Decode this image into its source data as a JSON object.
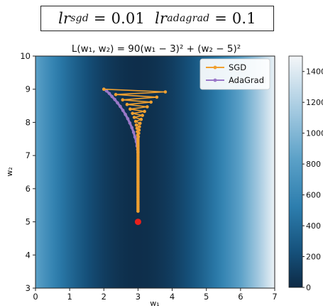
{
  "header": {
    "lr_sgd_symbol": "lr",
    "lr_sgd_sub": "sgd",
    "lr_sgd_value": "0.01",
    "lr_adagrad_symbol": "lr",
    "lr_adagrad_sub": "adagrad",
    "lr_adagrad_value": "0.1"
  },
  "chart_data": {
    "type": "heatmap",
    "title": "L(w₁, w₂) = 90(w₁ − 3)² + (w₂ − 5)²",
    "xlabel": "w₁",
    "ylabel": "w₂",
    "xlim": [
      0,
      7
    ],
    "ylim": [
      3,
      10
    ],
    "xticks": [
      "0",
      "1",
      "2",
      "3",
      "4",
      "5",
      "6",
      "7"
    ],
    "yticks": [
      "3",
      "4",
      "5",
      "6",
      "7",
      "8",
      "9",
      "10"
    ],
    "colorbar": {
      "min": 0,
      "max": 1500,
      "ticks": [
        "0",
        "200",
        "400",
        "600",
        "800",
        "1000",
        "1200",
        "1400"
      ]
    },
    "legend_position": "top-right",
    "minimum": {
      "x": 3,
      "y": 5
    },
    "series": [
      {
        "name": "SGD",
        "color": "#f0a030",
        "points": [
          [
            2.0,
            9.0
          ],
          [
            3.8,
            8.92
          ],
          [
            2.35,
            8.84
          ],
          [
            3.55,
            8.76
          ],
          [
            2.55,
            8.68
          ],
          [
            3.38,
            8.61
          ],
          [
            2.68,
            8.54
          ],
          [
            3.27,
            8.47
          ],
          [
            2.77,
            8.4
          ],
          [
            3.19,
            8.33
          ],
          [
            2.84,
            8.27
          ],
          [
            3.13,
            8.21
          ],
          [
            2.89,
            8.15
          ],
          [
            3.09,
            8.09
          ],
          [
            2.93,
            8.03
          ],
          [
            3.06,
            7.97
          ],
          [
            2.95,
            7.92
          ],
          [
            3.04,
            7.87
          ],
          [
            2.97,
            7.82
          ],
          [
            3.03,
            7.77
          ],
          [
            2.98,
            7.72
          ],
          [
            3.02,
            7.67
          ],
          [
            2.99,
            7.62
          ],
          [
            3.01,
            7.57
          ],
          [
            3.0,
            7.52
          ],
          [
            3.0,
            7.47
          ],
          [
            3.0,
            7.42
          ],
          [
            3.0,
            7.37
          ],
          [
            3.0,
            7.32
          ],
          [
            3.0,
            7.27
          ],
          [
            3.0,
            7.22
          ],
          [
            3.0,
            7.17
          ],
          [
            3.0,
            7.12
          ],
          [
            3.0,
            7.07
          ],
          [
            3.0,
            7.02
          ],
          [
            3.0,
            6.97
          ],
          [
            3.0,
            6.92
          ],
          [
            3.0,
            6.87
          ],
          [
            3.0,
            6.82
          ],
          [
            3.0,
            6.77
          ],
          [
            3.0,
            6.72
          ],
          [
            3.0,
            6.67
          ],
          [
            3.0,
            6.62
          ],
          [
            3.0,
            6.57
          ],
          [
            3.0,
            6.52
          ],
          [
            3.0,
            6.47
          ],
          [
            3.0,
            6.42
          ],
          [
            3.0,
            6.37
          ],
          [
            3.0,
            6.32
          ],
          [
            3.0,
            6.27
          ],
          [
            3.0,
            6.22
          ],
          [
            3.0,
            6.17
          ],
          [
            3.0,
            6.12
          ],
          [
            3.0,
            6.07
          ],
          [
            3.0,
            6.02
          ],
          [
            3.0,
            5.97
          ],
          [
            3.0,
            5.92
          ],
          [
            3.0,
            5.87
          ],
          [
            3.0,
            5.82
          ],
          [
            3.0,
            5.77
          ],
          [
            3.0,
            5.72
          ],
          [
            3.0,
            5.67
          ],
          [
            3.0,
            5.62
          ],
          [
            3.0,
            5.57
          ],
          [
            3.0,
            5.52
          ],
          [
            3.0,
            5.47
          ],
          [
            3.0,
            5.42
          ],
          [
            3.0,
            5.37
          ],
          [
            3.0,
            5.32
          ]
        ]
      },
      {
        "name": "AdaGrad",
        "color": "#9a78c8",
        "points": [
          [
            2.0,
            9.0
          ],
          [
            2.08,
            8.95
          ],
          [
            2.16,
            8.87
          ],
          [
            2.24,
            8.78
          ],
          [
            2.32,
            8.69
          ],
          [
            2.4,
            8.59
          ],
          [
            2.48,
            8.48
          ],
          [
            2.56,
            8.36
          ],
          [
            2.63,
            8.24
          ],
          [
            2.7,
            8.11
          ],
          [
            2.76,
            7.98
          ],
          [
            2.82,
            7.84
          ],
          [
            2.87,
            7.7
          ],
          [
            2.91,
            7.56
          ],
          [
            2.95,
            7.42
          ],
          [
            2.97,
            7.29
          ],
          [
            2.99,
            7.18
          ],
          [
            3.0,
            7.1
          ]
        ]
      }
    ]
  }
}
